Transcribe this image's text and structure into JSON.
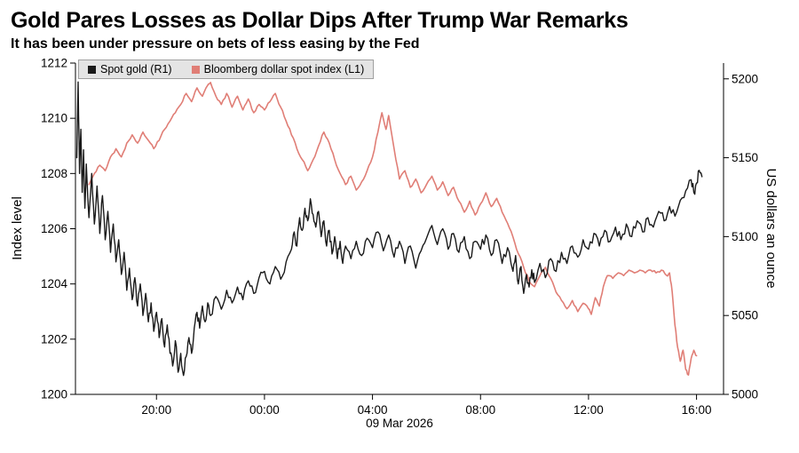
{
  "chart_data": {
    "type": "line",
    "title": "Gold Pares Losses as Dollar Dips After Trump War Remarks",
    "subtitle": "It has been under pressure on bets of less easing by the Fed",
    "grid": false,
    "legend_position": "top-left-inside",
    "x": {
      "unit": "hours from 17:00",
      "domain": [
        0,
        24
      ],
      "ticks": [
        {
          "t": 3,
          "label": "20:00"
        },
        {
          "t": 7,
          "label": "00:00"
        },
        {
          "t": 11,
          "label": "04:00"
        },
        {
          "t": 15,
          "label": "08:00"
        },
        {
          "t": 19,
          "label": "12:00"
        },
        {
          "t": 23,
          "label": "16:00"
        }
      ],
      "date_label": "09 Mar 2026"
    },
    "left_axis": {
      "label": "Index level",
      "min": 1200,
      "max": 1212,
      "ticks": [
        1200,
        1202,
        1204,
        1206,
        1208,
        1210,
        1212
      ]
    },
    "right_axis": {
      "label": "US dollars an ounce",
      "min": 5000,
      "max": 5210,
      "ticks": [
        5000,
        5050,
        5100,
        5150,
        5200
      ]
    },
    "series": [
      {
        "name": "Spot gold (R1)",
        "axis": "right",
        "color": "#1a1a1a",
        "jitter": 3.2,
        "points": [
          [
            0.05,
            5150
          ],
          [
            0.1,
            5198
          ],
          [
            0.15,
            5140
          ],
          [
            0.2,
            5168
          ],
          [
            0.25,
            5128
          ],
          [
            0.3,
            5155
          ],
          [
            0.35,
            5118
          ],
          [
            0.4,
            5146
          ],
          [
            0.5,
            5112
          ],
          [
            0.6,
            5140
          ],
          [
            0.7,
            5108
          ],
          [
            0.8,
            5132
          ],
          [
            0.9,
            5102
          ],
          [
            1.0,
            5126
          ],
          [
            1.1,
            5098
          ],
          [
            1.2,
            5116
          ],
          [
            1.3,
            5090
          ],
          [
            1.4,
            5108
          ],
          [
            1.5,
            5084
          ],
          [
            1.6,
            5098
          ],
          [
            1.7,
            5076
          ],
          [
            1.8,
            5090
          ],
          [
            1.9,
            5066
          ],
          [
            2.0,
            5080
          ],
          [
            2.1,
            5060
          ],
          [
            2.2,
            5074
          ],
          [
            2.3,
            5056
          ],
          [
            2.4,
            5070
          ],
          [
            2.5,
            5050
          ],
          [
            2.6,
            5064
          ],
          [
            2.7,
            5046
          ],
          [
            2.8,
            5058
          ],
          [
            2.9,
            5040
          ],
          [
            3.0,
            5052
          ],
          [
            3.1,
            5036
          ],
          [
            3.2,
            5048
          ],
          [
            3.3,
            5030
          ],
          [
            3.4,
            5044
          ],
          [
            3.5,
            5026
          ],
          [
            3.6,
            5018
          ],
          [
            3.7,
            5034
          ],
          [
            3.8,
            5014
          ],
          [
            3.9,
            5026
          ],
          [
            4.0,
            5012
          ],
          [
            4.1,
            5024
          ],
          [
            4.2,
            5036
          ],
          [
            4.3,
            5026
          ],
          [
            4.4,
            5042
          ],
          [
            4.5,
            5052
          ],
          [
            4.6,
            5042
          ],
          [
            4.7,
            5056
          ],
          [
            4.8,
            5046
          ],
          [
            4.9,
            5058
          ],
          [
            5.0,
            5050
          ],
          [
            5.2,
            5062
          ],
          [
            5.4,
            5054
          ],
          [
            5.6,
            5066
          ],
          [
            5.8,
            5058
          ],
          [
            6.0,
            5068
          ],
          [
            6.2,
            5060
          ],
          [
            6.4,
            5072
          ],
          [
            6.6,
            5064
          ],
          [
            6.8,
            5074
          ],
          [
            7.0,
            5078
          ],
          [
            7.2,
            5070
          ],
          [
            7.4,
            5081
          ],
          [
            7.6,
            5073
          ],
          [
            7.8,
            5084
          ],
          [
            8.0,
            5092
          ],
          [
            8.1,
            5103
          ],
          [
            8.2,
            5094
          ],
          [
            8.3,
            5112
          ],
          [
            8.4,
            5104
          ],
          [
            8.5,
            5118
          ],
          [
            8.6,
            5110
          ],
          [
            8.7,
            5124
          ],
          [
            8.8,
            5114
          ],
          [
            8.9,
            5106
          ],
          [
            9.0,
            5116
          ],
          [
            9.1,
            5100
          ],
          [
            9.2,
            5110
          ],
          [
            9.3,
            5094
          ],
          [
            9.4,
            5104
          ],
          [
            9.5,
            5089
          ],
          [
            9.6,
            5100
          ],
          [
            9.7,
            5086
          ],
          [
            9.8,
            5097
          ],
          [
            9.9,
            5083
          ],
          [
            10.0,
            5094
          ],
          [
            10.2,
            5086
          ],
          [
            10.4,
            5097
          ],
          [
            10.6,
            5088
          ],
          [
            10.8,
            5099
          ],
          [
            11.0,
            5093
          ],
          [
            11.2,
            5103
          ],
          [
            11.4,
            5091
          ],
          [
            11.6,
            5101
          ],
          [
            11.8,
            5087
          ],
          [
            12.0,
            5097
          ],
          [
            12.2,
            5083
          ],
          [
            12.4,
            5094
          ],
          [
            12.6,
            5080
          ],
          [
            12.8,
            5091
          ],
          [
            13.0,
            5099
          ],
          [
            13.2,
            5107
          ],
          [
            13.4,
            5095
          ],
          [
            13.6,
            5105
          ],
          [
            13.8,
            5092
          ],
          [
            14.0,
            5102
          ],
          [
            14.2,
            5090
          ],
          [
            14.4,
            5100
          ],
          [
            14.6,
            5086
          ],
          [
            14.8,
            5097
          ],
          [
            15.0,
            5092
          ],
          [
            15.2,
            5101
          ],
          [
            15.4,
            5088
          ],
          [
            15.6,
            5098
          ],
          [
            15.8,
            5083
          ],
          [
            16.0,
            5093
          ],
          [
            16.2,
            5078
          ],
          [
            16.3,
            5088
          ],
          [
            16.4,
            5070
          ],
          [
            16.5,
            5081
          ],
          [
            16.6,
            5064
          ],
          [
            16.7,
            5076
          ],
          [
            16.8,
            5068
          ],
          [
            16.9,
            5079
          ],
          [
            17.0,
            5071
          ],
          [
            17.2,
            5083
          ],
          [
            17.4,
            5074
          ],
          [
            17.6,
            5086
          ],
          [
            17.8,
            5078
          ],
          [
            18.0,
            5090
          ],
          [
            18.2,
            5083
          ],
          [
            18.4,
            5094
          ],
          [
            18.6,
            5087
          ],
          [
            18.8,
            5098
          ],
          [
            19.0,
            5092
          ],
          [
            19.2,
            5102
          ],
          [
            19.4,
            5094
          ],
          [
            19.6,
            5104
          ],
          [
            19.8,
            5097
          ],
          [
            20.0,
            5106
          ],
          [
            20.2,
            5098
          ],
          [
            20.4,
            5108
          ],
          [
            20.6,
            5100
          ],
          [
            20.8,
            5110
          ],
          [
            21.0,
            5103
          ],
          [
            21.2,
            5112
          ],
          [
            21.4,
            5106
          ],
          [
            21.6,
            5116
          ],
          [
            21.8,
            5110
          ],
          [
            22.0,
            5119
          ],
          [
            22.2,
            5113
          ],
          [
            22.4,
            5123
          ],
          [
            22.6,
            5129
          ],
          [
            22.8,
            5136
          ],
          [
            22.9,
            5128
          ],
          [
            23.0,
            5134
          ],
          [
            23.1,
            5142
          ],
          [
            23.2,
            5138
          ]
        ]
      },
      {
        "name": "Bloomberg dollar spot index (L1)",
        "axis": "left",
        "color": "#e07e76",
        "jitter": 0.05,
        "points": [
          [
            0.5,
            1207.6
          ],
          [
            0.7,
            1208.0
          ],
          [
            0.9,
            1208.3
          ],
          [
            1.1,
            1208.1
          ],
          [
            1.3,
            1208.6
          ],
          [
            1.5,
            1208.9
          ],
          [
            1.7,
            1208.6
          ],
          [
            1.9,
            1209.1
          ],
          [
            2.1,
            1209.4
          ],
          [
            2.3,
            1209.1
          ],
          [
            2.5,
            1209.5
          ],
          [
            2.7,
            1209.2
          ],
          [
            2.9,
            1208.9
          ],
          [
            3.1,
            1209.2
          ],
          [
            3.3,
            1209.6
          ],
          [
            3.5,
            1209.9
          ],
          [
            3.7,
            1210.2
          ],
          [
            3.9,
            1210.5
          ],
          [
            4.1,
            1210.9
          ],
          [
            4.3,
            1210.6
          ],
          [
            4.5,
            1211.1
          ],
          [
            4.7,
            1210.8
          ],
          [
            4.9,
            1211.2
          ],
          [
            5.0,
            1211.3
          ],
          [
            5.2,
            1210.8
          ],
          [
            5.4,
            1210.5
          ],
          [
            5.6,
            1210.9
          ],
          [
            5.8,
            1210.4
          ],
          [
            6.0,
            1210.8
          ],
          [
            6.2,
            1210.3
          ],
          [
            6.4,
            1210.7
          ],
          [
            6.6,
            1210.2
          ],
          [
            6.8,
            1210.5
          ],
          [
            7.0,
            1210.3
          ],
          [
            7.2,
            1210.6
          ],
          [
            7.4,
            1210.9
          ],
          [
            7.6,
            1210.4
          ],
          [
            7.8,
            1209.9
          ],
          [
            8.0,
            1209.4
          ],
          [
            8.2,
            1208.9
          ],
          [
            8.4,
            1208.5
          ],
          [
            8.6,
            1208.1
          ],
          [
            8.8,
            1208.5
          ],
          [
            9.0,
            1209.0
          ],
          [
            9.2,
            1209.5
          ],
          [
            9.4,
            1209.1
          ],
          [
            9.6,
            1208.5
          ],
          [
            9.8,
            1208.0
          ],
          [
            10.0,
            1207.6
          ],
          [
            10.2,
            1207.9
          ],
          [
            10.4,
            1207.4
          ],
          [
            10.6,
            1207.7
          ],
          [
            10.8,
            1208.1
          ],
          [
            11.0,
            1208.6
          ],
          [
            11.2,
            1209.5
          ],
          [
            11.35,
            1210.2
          ],
          [
            11.5,
            1209.6
          ],
          [
            11.6,
            1210.1
          ],
          [
            11.8,
            1208.9
          ],
          [
            12.0,
            1207.8
          ],
          [
            12.2,
            1208.1
          ],
          [
            12.4,
            1207.5
          ],
          [
            12.6,
            1207.8
          ],
          [
            12.8,
            1207.3
          ],
          [
            13.0,
            1207.6
          ],
          [
            13.2,
            1207.9
          ],
          [
            13.4,
            1207.4
          ],
          [
            13.6,
            1207.7
          ],
          [
            13.8,
            1207.2
          ],
          [
            14.0,
            1207.5
          ],
          [
            14.2,
            1207.0
          ],
          [
            14.4,
            1206.6
          ],
          [
            14.6,
            1207.0
          ],
          [
            14.8,
            1206.5
          ],
          [
            15.0,
            1206.9
          ],
          [
            15.2,
            1207.3
          ],
          [
            15.4,
            1206.8
          ],
          [
            15.6,
            1207.1
          ],
          [
            15.8,
            1206.6
          ],
          [
            16.0,
            1206.2
          ],
          [
            16.2,
            1205.7
          ],
          [
            16.4,
            1205.1
          ],
          [
            16.6,
            1204.6
          ],
          [
            16.8,
            1204.1
          ],
          [
            17.0,
            1203.9
          ],
          [
            17.2,
            1204.3
          ],
          [
            17.4,
            1204.6
          ],
          [
            17.6,
            1204.2
          ],
          [
            17.8,
            1203.7
          ],
          [
            18.0,
            1203.4
          ],
          [
            18.2,
            1203.1
          ],
          [
            18.4,
            1203.4
          ],
          [
            18.6,
            1203.0
          ],
          [
            18.8,
            1203.3
          ],
          [
            19.0,
            1203.1
          ],
          [
            19.1,
            1202.9
          ],
          [
            19.25,
            1203.5
          ],
          [
            19.4,
            1203.2
          ],
          [
            19.55,
            1203.9
          ],
          [
            19.7,
            1204.3
          ],
          [
            19.9,
            1204.2
          ],
          [
            20.1,
            1204.4
          ],
          [
            20.3,
            1204.3
          ],
          [
            20.5,
            1204.5
          ],
          [
            20.7,
            1204.4
          ],
          [
            20.9,
            1204.5
          ],
          [
            21.1,
            1204.4
          ],
          [
            21.3,
            1204.5
          ],
          [
            21.5,
            1204.4
          ],
          [
            21.7,
            1204.5
          ],
          [
            21.9,
            1204.3
          ],
          [
            22.0,
            1204.4
          ],
          [
            22.1,
            1203.7
          ],
          [
            22.2,
            1202.5
          ],
          [
            22.3,
            1201.7
          ],
          [
            22.4,
            1201.2
          ],
          [
            22.5,
            1201.6
          ],
          [
            22.6,
            1200.9
          ],
          [
            22.7,
            1200.7
          ],
          [
            22.8,
            1201.3
          ],
          [
            22.9,
            1201.6
          ],
          [
            23.0,
            1201.4
          ]
        ]
      }
    ]
  }
}
